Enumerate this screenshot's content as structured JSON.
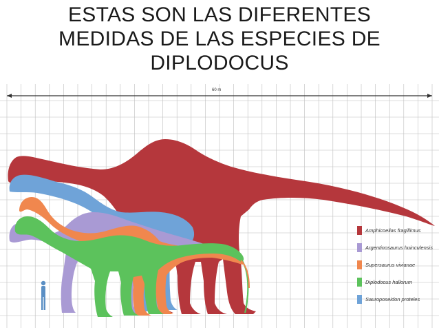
{
  "title": {
    "line1": "ESTAS SON LAS DIFERENTES",
    "line2": "MEDIDAS DE LAS ESPECIES DE",
    "line3": "DIPLODOCUS"
  },
  "scale": {
    "label": "60 m"
  },
  "legend": [
    {
      "label": "Amphicoelias fragillimus",
      "color": "#b5373c"
    },
    {
      "label": "Argentinosaurus huinculensis",
      "color": "#a99ad4"
    },
    {
      "label": "Supersaurus vivianae",
      "color": "#f0874e"
    },
    {
      "label": "Diplodocus hallorum",
      "color": "#5cc25c"
    },
    {
      "label": "Sauroposeidon proteles",
      "color": "#6fa3d8"
    }
  ],
  "human": {
    "color": "#5b8fc4"
  }
}
